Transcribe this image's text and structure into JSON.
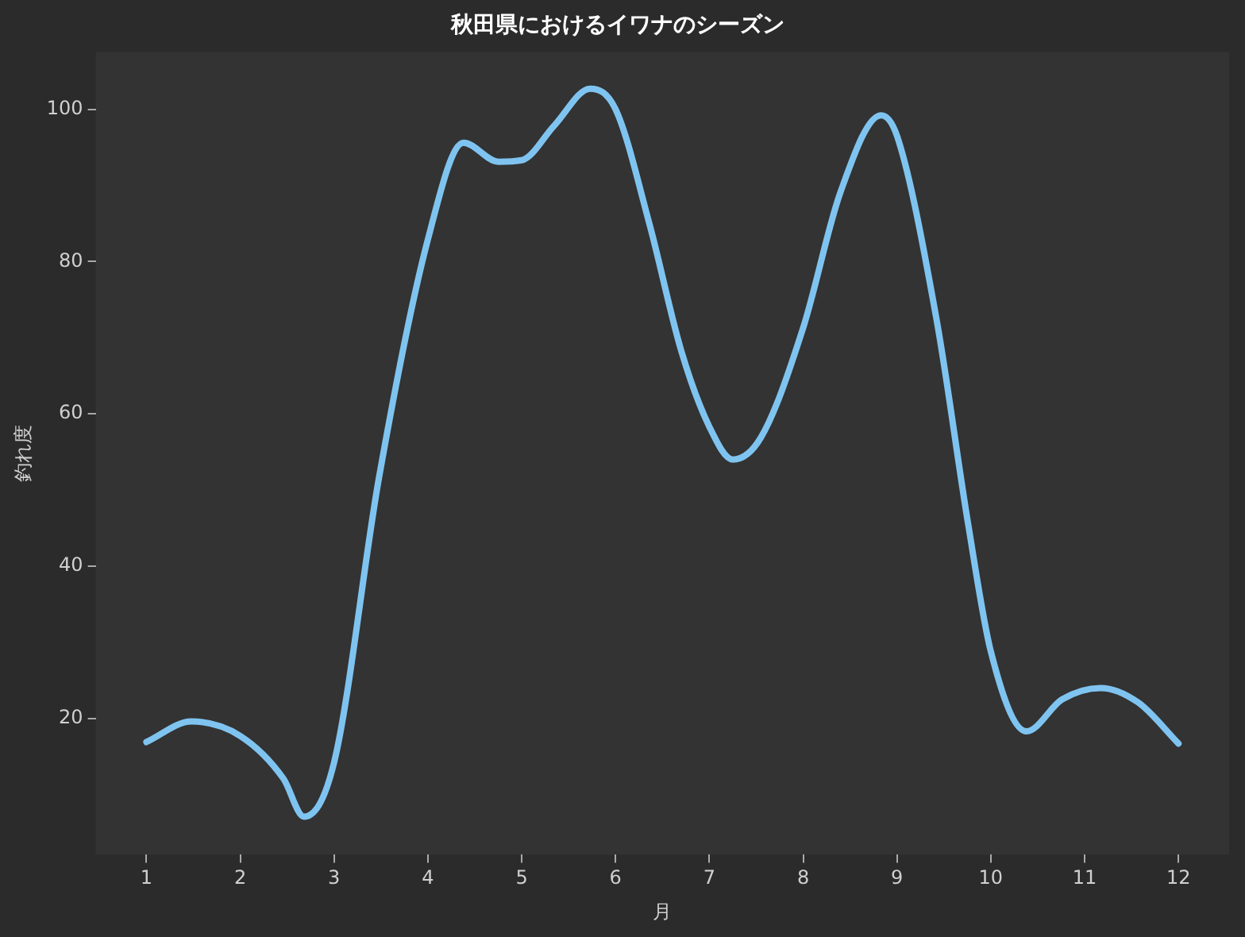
{
  "chart_data": {
    "type": "line",
    "title": "秋田県におけるイワナのシーズン",
    "xlabel": "月",
    "ylabel": "釣れ度",
    "x": [
      1,
      1.48,
      2,
      2.46,
      2.68,
      3,
      3.48,
      4,
      4.38,
      4.75,
      5,
      5.35,
      5.73,
      6,
      6.36,
      6.7,
      7,
      7.25,
      7.55,
      8,
      8.4,
      8.83,
      9,
      9.42,
      9.76,
      10,
      10.38,
      10.76,
      11.17,
      11.57,
      12
    ],
    "series": [
      {
        "color": "#7fc4f0",
        "values": [
          16.9,
          19.6,
          17.7,
          12.1,
          7.1,
          14.2,
          51.7,
          82.9,
          95.6,
          93.1,
          93.3,
          97.9,
          102.7,
          100,
          85,
          68.3,
          58.3,
          54,
          56.9,
          71.3,
          89.2,
          99.2,
          96.5,
          72.5,
          45.4,
          28.8,
          18.3,
          22.5,
          24,
          22.1,
          16.7
        ]
      }
    ],
    "xlim": [
      0.46,
      12.54
    ],
    "xticks": [
      1,
      2,
      3,
      4,
      5,
      6,
      7,
      8,
      9,
      10,
      11,
      12
    ],
    "ylim": [
      2.1,
      107.5
    ],
    "yticks": [
      20,
      40,
      60,
      80,
      100
    ],
    "grid": false,
    "legend": false,
    "marker": "none",
    "line_style": "solid"
  }
}
